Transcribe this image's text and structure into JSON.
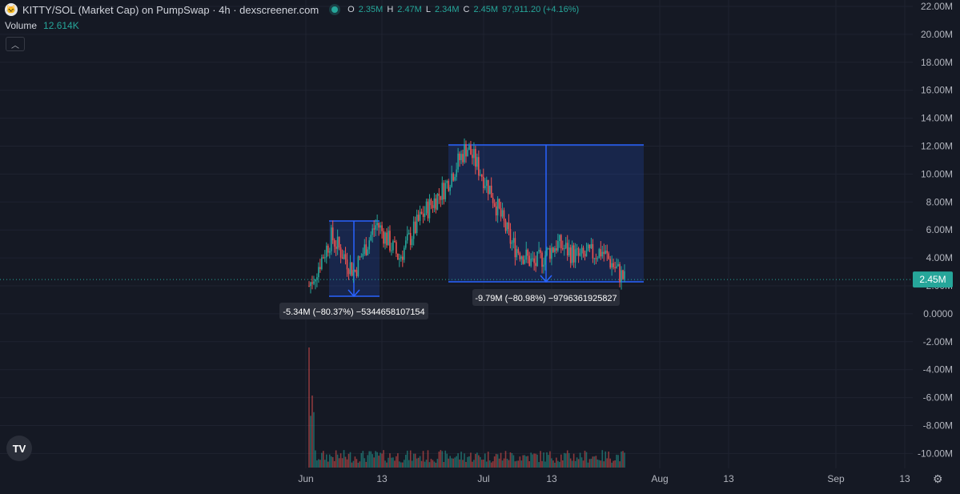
{
  "header": {
    "title": "KITTY/SOL (Market Cap) on PumpSwap · 4h · dexscreener.com",
    "ohlc": [
      {
        "key": "O",
        "value": "2.35M"
      },
      {
        "key": "H",
        "value": "2.47M"
      },
      {
        "key": "L",
        "value": "2.34M"
      },
      {
        "key": "C",
        "value": "2.45M"
      }
    ],
    "change": "97,911.20 (+4.16%)",
    "volume_label": "Volume",
    "volume_value": "12.614K",
    "collapse_icon": "chevron-up-icon"
  },
  "colors": {
    "background": "#151924",
    "up": "#26a69a",
    "down": "#ef5350",
    "measure": "#2962ff",
    "measure_fill": "rgba(41,98,255,0.18)",
    "price_tag": "#26a69a",
    "grid": "#1f2330"
  },
  "price_badge": "2.45M",
  "measurements": [
    {
      "text": "-5.34M (−80.37%) −5344658107154"
    },
    {
      "text": "-9.79M (−80.98%) −9796361925827"
    }
  ],
  "chart_data": {
    "type": "candlestick",
    "y_ticks": [
      "22.00M",
      "20.00M",
      "18.00M",
      "16.00M",
      "14.00M",
      "12.00M",
      "10.00M",
      "8.00M",
      "6.00M",
      "4.00M",
      "2.00M",
      "0.0000",
      "-2.00M",
      "-4.00M",
      "-6.00M",
      "-8.00M",
      "-10.00M"
    ],
    "y_range_millions": [
      -11,
      22.5
    ],
    "x_ticks": [
      "Jun",
      "13",
      "Jul",
      "13",
      "Aug",
      "13",
      "Sep",
      "13"
    ],
    "series_envelope": [
      {
        "date": "Jun 1",
        "value_m": 2.0
      },
      {
        "date": "Jun 3",
        "value_m": 5.5
      },
      {
        "date": "Jun 7",
        "value_m": 3.0
      },
      {
        "date": "Jun 12",
        "value_m": 6.5
      },
      {
        "date": "Jun 15",
        "value_m": 4.0
      },
      {
        "date": "Jun 20",
        "value_m": 7.0
      },
      {
        "date": "Jun 25",
        "value_m": 9.0
      },
      {
        "date": "Jun 27",
        "value_m": 12.0
      },
      {
        "date": "Jul 1",
        "value_m": 9.0
      },
      {
        "date": "Jul 5",
        "value_m": 5.0
      },
      {
        "date": "Jul 10",
        "value_m": 3.5
      },
      {
        "date": "Jul 15",
        "value_m": 5.0
      },
      {
        "date": "Jul 20",
        "value_m": 4.0
      },
      {
        "date": "Jul 24",
        "value_m": 4.5
      },
      {
        "date": "Jul 27",
        "value_m": 2.45
      }
    ],
    "last_value": "2.45M"
  }
}
